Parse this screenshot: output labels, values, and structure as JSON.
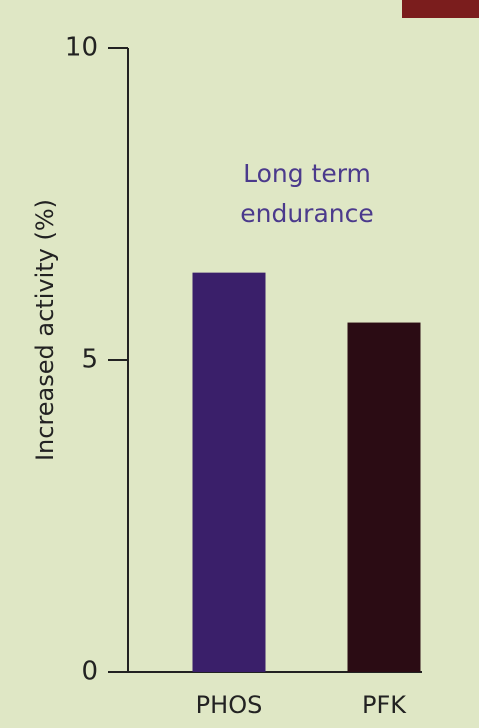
{
  "chart_data": {
    "type": "bar",
    "y_label": "Increased activity (%)",
    "annotation": [
      "Long term",
      "endurance"
    ],
    "categories": [
      "PHOS",
      "PFK"
    ],
    "values": [
      6.4,
      5.6
    ],
    "colors": [
      "#3a1f6a",
      "#2b0c14"
    ],
    "ylim": [
      0,
      10
    ],
    "yticks": [
      0,
      5,
      10
    ],
    "grid": false
  }
}
